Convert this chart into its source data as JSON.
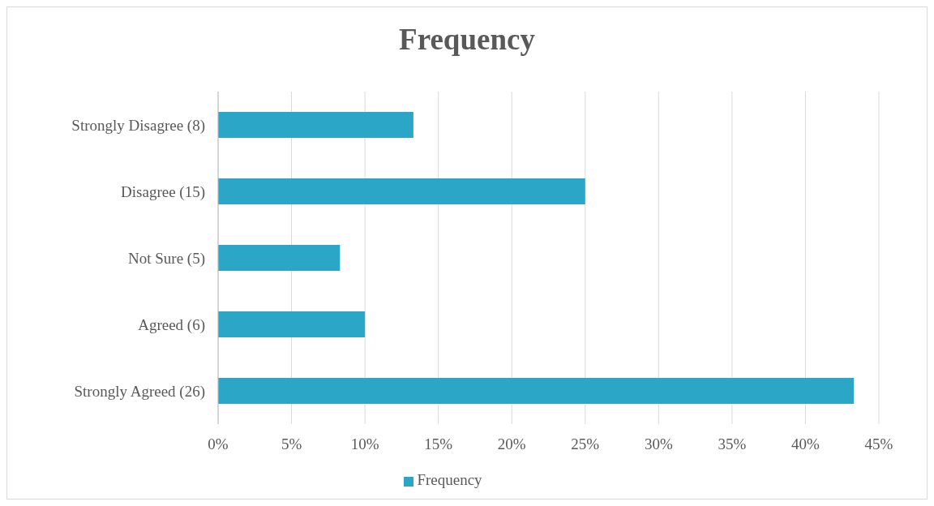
{
  "chart_data": {
    "type": "bar",
    "orientation": "horizontal",
    "title": "Frequency",
    "categories": [
      "Strongly Disagree (8)",
      "Disagree (15)",
      "Not Sure (5)",
      "Agreed (6)",
      "Strongly Agreed (26)"
    ],
    "series": [
      {
        "name": "Frequency",
        "color": "#2ba6c6",
        "values": [
          13.3,
          25,
          8.3,
          10,
          43.3
        ]
      }
    ],
    "xlim": [
      0,
      45
    ],
    "xticks": [
      {
        "value": 0,
        "label": "0%"
      },
      {
        "value": 5,
        "label": "5%"
      },
      {
        "value": 10,
        "label": "10%"
      },
      {
        "value": 15,
        "label": "15%"
      },
      {
        "value": 20,
        "label": "20%"
      },
      {
        "value": 25,
        "label": "25%"
      },
      {
        "value": 30,
        "label": "30%"
      },
      {
        "value": 35,
        "label": "35%"
      },
      {
        "value": 40,
        "label": "40%"
      },
      {
        "value": 45,
        "label": "45%"
      }
    ],
    "grid": "x",
    "legend": "bottom"
  }
}
